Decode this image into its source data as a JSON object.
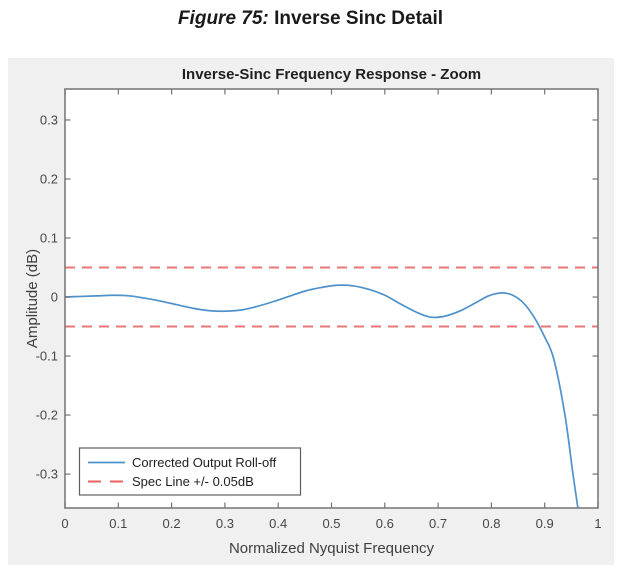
{
  "caption": {
    "prefix": "Figure 75:",
    "title": "Inverse Sinc Detail"
  },
  "chart_data": {
    "type": "line",
    "title": "Inverse-Sinc Frequency Response - Zoom",
    "xlabel": "Normalized Nyquist Frequency",
    "ylabel": "Amplitude (dB)",
    "xlim": [
      0,
      1
    ],
    "ylim": [
      -0.3575,
      0.3525
    ],
    "x_ticks": [
      0,
      0.1,
      0.2,
      0.3,
      0.4,
      0.5,
      0.6,
      0.7,
      0.8,
      0.9,
      1
    ],
    "x_tick_labels": [
      "0",
      "0.1",
      "0.2",
      "0.3",
      "0.4",
      "0.5",
      "0.6",
      "0.7",
      "0.8",
      "0.9",
      "1"
    ],
    "y_ticks": [
      0.3,
      0.2,
      0.1,
      0,
      -0.1,
      -0.2,
      -0.3
    ],
    "y_tick_labels": [
      "0.3",
      "0.2",
      "0.1",
      "0",
      "-0.1",
      "-0.2",
      "-0.3"
    ],
    "grid": false,
    "legend_position": "bottom-left",
    "series": [
      {
        "name": "Corrected Output Roll-off",
        "type": "line",
        "style": "solid",
        "color": "#4e92cc",
        "points": [
          [
            0,
            0
          ],
          [
            0.03,
            0.001
          ],
          [
            0.06,
            0.002
          ],
          [
            0.09,
            0.003
          ],
          [
            0.12,
            0.002
          ],
          [
            0.15,
            -0.002
          ],
          [
            0.18,
            -0.007
          ],
          [
            0.21,
            -0.013
          ],
          [
            0.24,
            -0.019
          ],
          [
            0.27,
            -0.023
          ],
          [
            0.3,
            -0.024
          ],
          [
            0.33,
            -0.022
          ],
          [
            0.36,
            -0.016
          ],
          [
            0.39,
            -0.008
          ],
          [
            0.42,
            0.001
          ],
          [
            0.45,
            0.01
          ],
          [
            0.48,
            0.016
          ],
          [
            0.51,
            0.02
          ],
          [
            0.54,
            0.019
          ],
          [
            0.57,
            0.013
          ],
          [
            0.6,
            0.003
          ],
          [
            0.63,
            -0.012
          ],
          [
            0.66,
            -0.026
          ],
          [
            0.685,
            -0.034
          ],
          [
            0.71,
            -0.033
          ],
          [
            0.74,
            -0.024
          ],
          [
            0.77,
            -0.01
          ],
          [
            0.795,
            0.002
          ],
          [
            0.82,
            0.007
          ],
          [
            0.84,
            0.003
          ],
          [
            0.86,
            -0.01
          ],
          [
            0.88,
            -0.034
          ],
          [
            0.9,
            -0.068
          ],
          [
            0.917,
            -0.105
          ],
          [
            0.938,
            -0.2
          ],
          [
            0.953,
            -0.3
          ],
          [
            0.963,
            -0.362
          ]
        ]
      },
      {
        "name": "Spec Line +/- 0.05dB",
        "type": "hline",
        "style": "dashed",
        "color": "#e85f5f",
        "values": [
          0.05,
          -0.05
        ]
      }
    ]
  },
  "colors": {
    "figure_background": "#f0f0f0",
    "plot_background": "#ffffff",
    "axes_box": "#737373",
    "curve_blue": "#4e92cc",
    "spec_red": "#e85f5f"
  }
}
